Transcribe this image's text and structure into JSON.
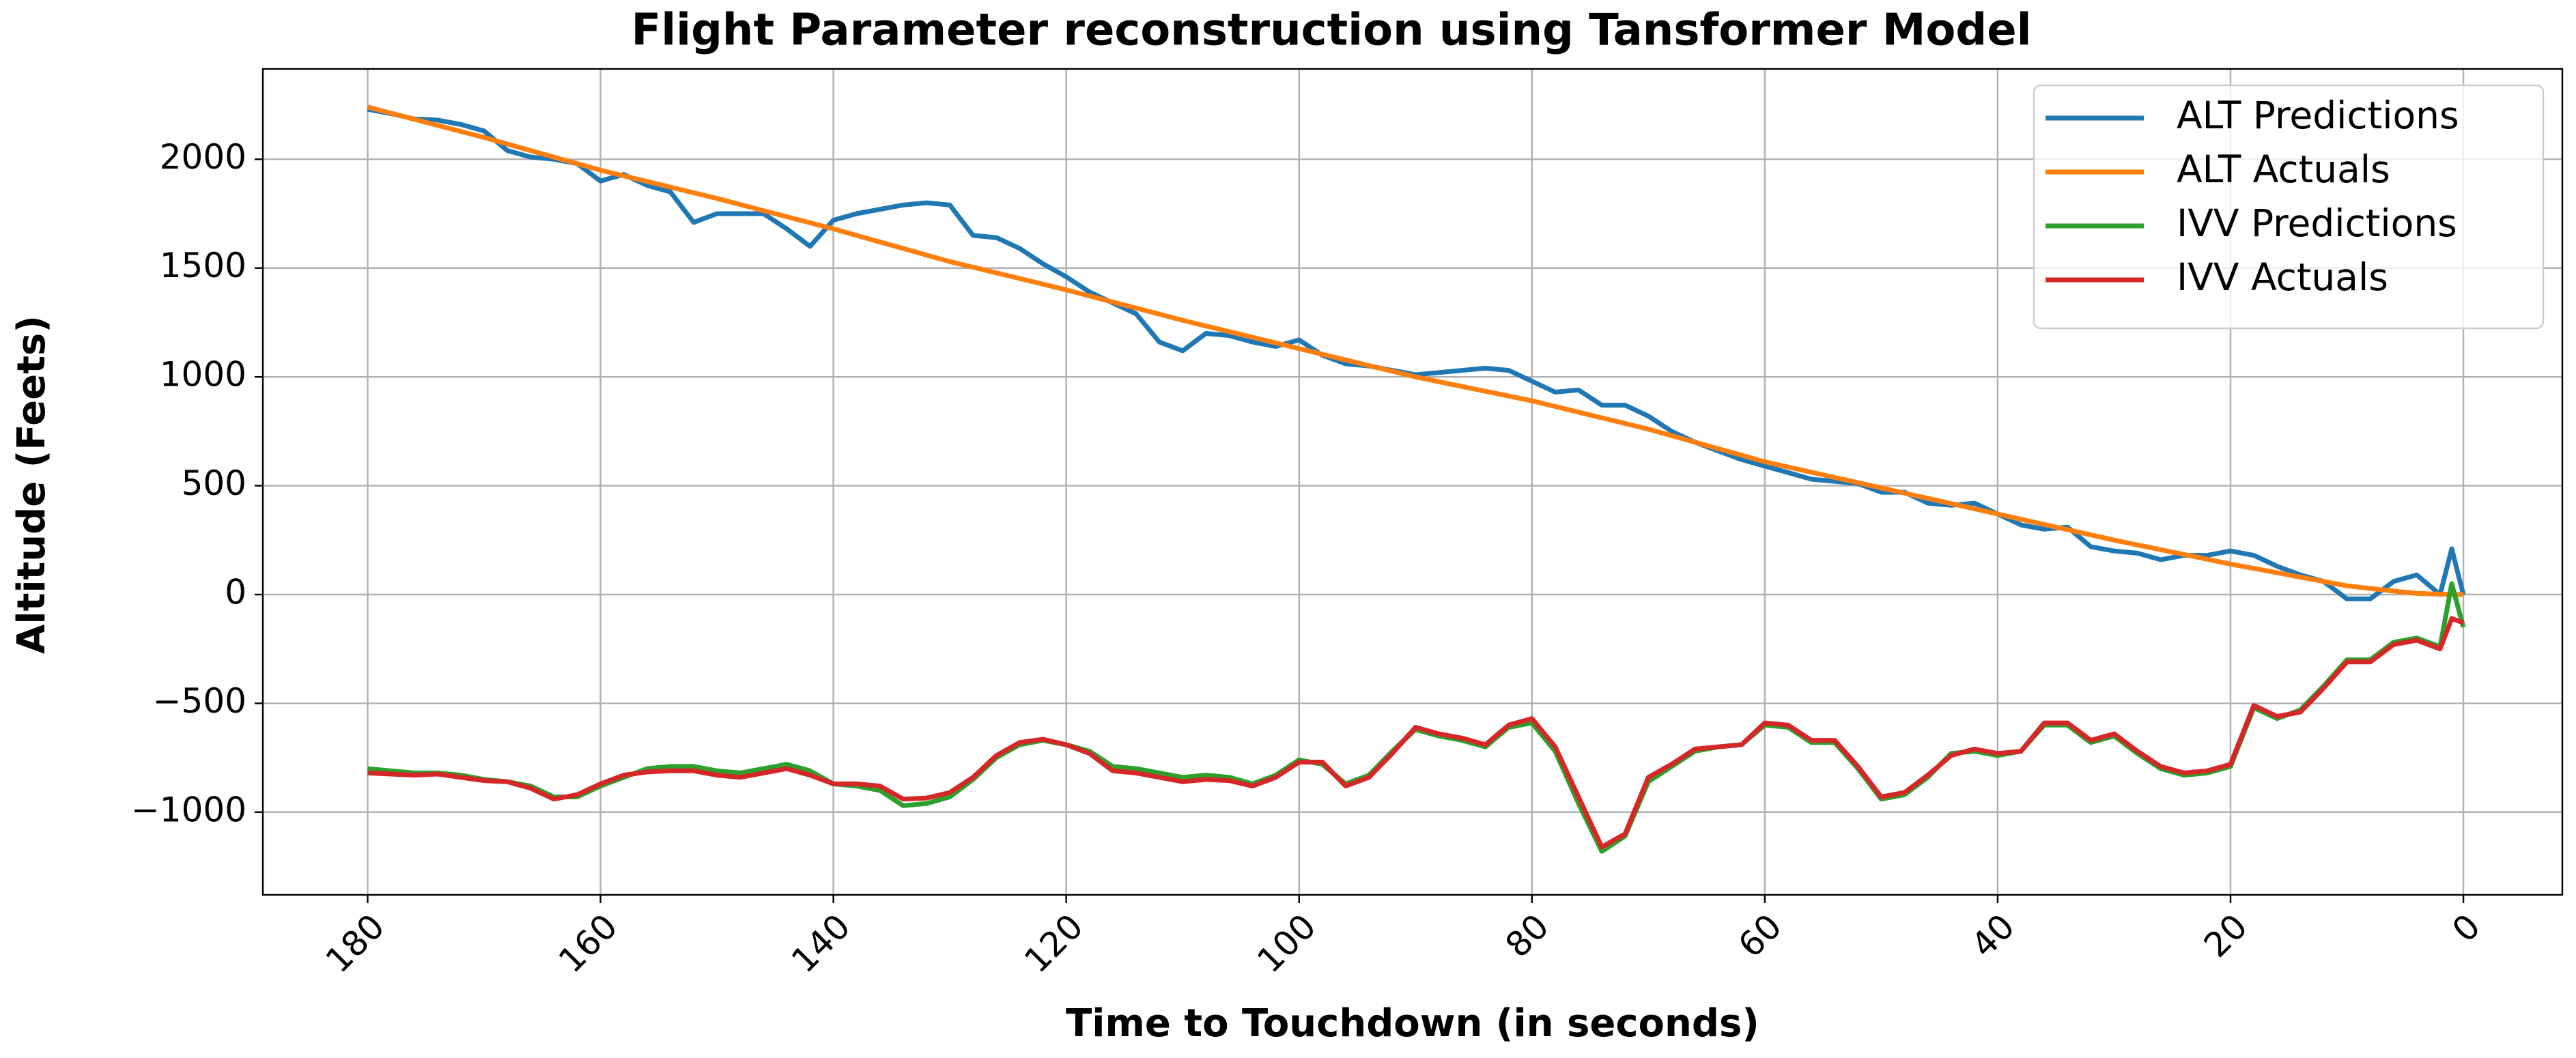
{
  "chart_data": {
    "type": "line",
    "title": "Flight Parameter reconstruction using Tansformer Model",
    "xlabel": "Time to Touchdown (in seconds)",
    "ylabel": "Altitude (Feets)",
    "x": [
      180,
      178,
      176,
      174,
      172,
      170,
      168,
      166,
      164,
      162,
      160,
      158,
      156,
      154,
      152,
      150,
      148,
      146,
      144,
      142,
      140,
      138,
      136,
      134,
      132,
      130,
      128,
      126,
      124,
      122,
      120,
      118,
      116,
      114,
      112,
      110,
      108,
      106,
      104,
      102,
      100,
      98,
      96,
      94,
      92,
      90,
      88,
      86,
      84,
      82,
      80,
      78,
      76,
      74,
      72,
      70,
      68,
      66,
      64,
      62,
      60,
      58,
      56,
      54,
      52,
      50,
      48,
      46,
      44,
      42,
      40,
      38,
      36,
      34,
      32,
      30,
      28,
      26,
      24,
      22,
      20,
      18,
      16,
      14,
      12,
      10,
      8,
      6,
      4,
      2,
      1,
      0
    ],
    "series": [
      {
        "name": "ALT Predictions",
        "color": "#1f77b4",
        "values": [
          2230,
          2210,
          2185,
          2180,
          2160,
          2130,
          2040,
          2010,
          2000,
          1980,
          1900,
          1930,
          1880,
          1850,
          1710,
          1750,
          1750,
          1750,
          1680,
          1600,
          1720,
          1750,
          1770,
          1790,
          1800,
          1790,
          1650,
          1640,
          1590,
          1520,
          1460,
          1390,
          1340,
          1290,
          1160,
          1120,
          1200,
          1190,
          1160,
          1140,
          1170,
          1100,
          1060,
          1050,
          1030,
          1010,
          1020,
          1030,
          1040,
          1030,
          980,
          930,
          940,
          870,
          870,
          820,
          750,
          700,
          660,
          620,
          590,
          560,
          530,
          520,
          510,
          470,
          470,
          420,
          410,
          420,
          370,
          320,
          300,
          310,
          220,
          200,
          190,
          160,
          180,
          180,
          200,
          180,
          130,
          90,
          60,
          -20,
          -20,
          60,
          90,
          0,
          210,
          0
        ]
      },
      {
        "name": "ALT Actuals",
        "color": "#ff7f0e",
        "values": [
          2240,
          2212,
          2184,
          2156,
          2128,
          2100,
          2070,
          2040,
          2010,
          1980,
          1950,
          1924,
          1898,
          1872,
          1846,
          1820,
          1792,
          1764,
          1736,
          1708,
          1680,
          1650,
          1620,
          1590,
          1560,
          1530,
          1504,
          1478,
          1452,
          1426,
          1400,
          1372,
          1344,
          1316,
          1288,
          1260,
          1234,
          1208,
          1182,
          1156,
          1130,
          1104,
          1078,
          1052,
          1026,
          1000,
          978,
          956,
          934,
          912,
          890,
          864,
          838,
          812,
          786,
          760,
          730,
          700,
          670,
          640,
          610,
          586,
          562,
          538,
          514,
          490,
          466,
          442,
          418,
          394,
          370,
          346,
          322,
          298,
          274,
          250,
          228,
          206,
          184,
          162,
          140,
          120,
          100,
          80,
          60,
          40,
          28,
          16,
          5,
          2,
          1,
          0
        ]
      },
      {
        "name": "IVV Predictions",
        "color": "#2ca02c",
        "values": [
          -800,
          -810,
          -820,
          -820,
          -830,
          -850,
          -860,
          -880,
          -930,
          -930,
          -880,
          -840,
          -800,
          -790,
          -790,
          -810,
          -820,
          -800,
          -780,
          -810,
          -870,
          -880,
          -900,
          -970,
          -960,
          -930,
          -850,
          -750,
          -690,
          -670,
          -690,
          -720,
          -790,
          -800,
          -820,
          -840,
          -830,
          -840,
          -870,
          -830,
          -760,
          -780,
          -870,
          -830,
          -720,
          -620,
          -650,
          -670,
          -700,
          -610,
          -590,
          -720,
          -960,
          -1180,
          -1110,
          -860,
          -790,
          -720,
          -700,
          -690,
          -600,
          -610,
          -680,
          -680,
          -800,
          -940,
          -920,
          -840,
          -730,
          -720,
          -740,
          -720,
          -600,
          -600,
          -680,
          -650,
          -730,
          -800,
          -830,
          -820,
          -790,
          -520,
          -570,
          -530,
          -420,
          -300,
          -300,
          -220,
          -200,
          -240,
          50,
          -150
        ]
      },
      {
        "name": "IVV Actuals",
        "color": "#d62728",
        "values": [
          -820,
          -825,
          -830,
          -825,
          -840,
          -855,
          -860,
          -890,
          -940,
          -920,
          -870,
          -830,
          -815,
          -810,
          -810,
          -830,
          -840,
          -820,
          -800,
          -830,
          -870,
          -870,
          -880,
          -940,
          -935,
          -910,
          -840,
          -740,
          -680,
          -665,
          -690,
          -730,
          -810,
          -820,
          -840,
          -860,
          -850,
          -855,
          -880,
          -840,
          -770,
          -770,
          -880,
          -840,
          -730,
          -610,
          -640,
          -660,
          -690,
          -600,
          -570,
          -700,
          -930,
          -1160,
          -1100,
          -840,
          -780,
          -710,
          -700,
          -690,
          -590,
          -600,
          -670,
          -670,
          -790,
          -930,
          -910,
          -830,
          -740,
          -710,
          -730,
          -720,
          -590,
          -590,
          -670,
          -640,
          -720,
          -790,
          -820,
          -810,
          -780,
          -510,
          -560,
          -540,
          -430,
          -310,
          -310,
          -230,
          -210,
          -250,
          -110,
          -130
        ]
      }
    ],
    "xlim": [
      189,
      -8.5
    ],
    "ylim": [
      -1380,
      2415
    ],
    "xticks": [
      180,
      160,
      140,
      120,
      100,
      80,
      60,
      40,
      20,
      0
    ],
    "yticks": [
      {
        "value": -1000,
        "label": "−1000"
      },
      {
        "value": -500,
        "label": "−500"
      },
      0,
      500,
      1000,
      1500,
      2000
    ],
    "grid": true,
    "legend": "upper right"
  }
}
